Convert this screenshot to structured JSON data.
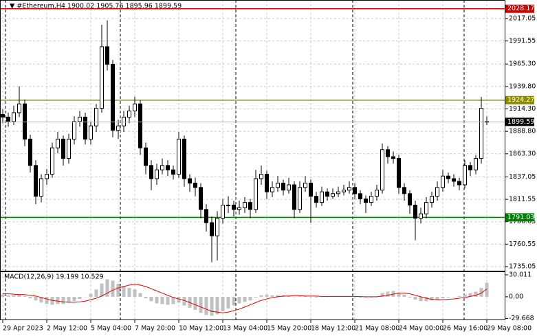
{
  "chart_data": {
    "type": "candlestick",
    "title": "▼ #Ethereum,H4 1900.02 1905.76 1895.96 1899.59",
    "categories": [
      "29 Apr 2023",
      null,
      null,
      null,
      null,
      null,
      null,
      null,
      "2 May 12:00",
      null,
      null,
      null,
      null,
      null,
      null,
      null,
      "5 May 04:00",
      null,
      null,
      null,
      null,
      null,
      null,
      null,
      "7 May 20:00",
      null,
      null,
      null,
      null,
      null,
      null,
      null,
      "10 May 12:00",
      null,
      null,
      null,
      null,
      null,
      null,
      null,
      "13 May 04:00",
      null,
      null,
      null,
      null,
      null,
      null,
      null,
      "15 May 20:00",
      null,
      null,
      null,
      null,
      null,
      null,
      null,
      "18 May 12:00",
      null,
      null,
      null,
      null,
      null,
      null,
      null,
      "21 May 08:00",
      null,
      null,
      null,
      null,
      null,
      null,
      null,
      "24 May 00:00",
      null,
      null,
      null,
      null,
      null,
      null,
      null,
      "26 May 16:00",
      null,
      null,
      null,
      null,
      null,
      null,
      null,
      "29 May 08:00"
    ],
    "ohlc": [
      [
        1908,
        1914,
        1898,
        1905
      ],
      [
        1905,
        1910,
        1894,
        1900
      ],
      [
        1900,
        1918,
        1896,
        1910
      ],
      [
        1910,
        1940,
        1905,
        1920
      ],
      [
        1920,
        1925,
        1872,
        1880
      ],
      [
        1880,
        1885,
        1842,
        1850
      ],
      [
        1850,
        1856,
        1806,
        1815
      ],
      [
        1815,
        1840,
        1808,
        1835
      ],
      [
        1835,
        1846,
        1828,
        1840
      ],
      [
        1840,
        1876,
        1836,
        1870
      ],
      [
        1870,
        1888,
        1864,
        1880
      ],
      [
        1880,
        1884,
        1850,
        1858
      ],
      [
        1858,
        1886,
        1852,
        1880
      ],
      [
        1880,
        1906,
        1874,
        1900
      ],
      [
        1900,
        1912,
        1894,
        1905
      ],
      [
        1905,
        1910,
        1874,
        1880
      ],
      [
        1880,
        1900,
        1874,
        1895
      ],
      [
        1895,
        1920,
        1888,
        1915
      ],
      [
        1915,
        2010,
        1910,
        1985
      ],
      [
        1985,
        2015,
        1958,
        1965
      ],
      [
        1965,
        1970,
        1882,
        1890
      ],
      [
        1890,
        1902,
        1880,
        1895
      ],
      [
        1895,
        1912,
        1888,
        1905
      ],
      [
        1905,
        1918,
        1898,
        1912
      ],
      [
        1912,
        1928,
        1905,
        1920
      ],
      [
        1920,
        1924,
        1862,
        1870
      ],
      [
        1870,
        1876,
        1840,
        1850
      ],
      [
        1850,
        1856,
        1822,
        1835
      ],
      [
        1835,
        1852,
        1828,
        1845
      ],
      [
        1845,
        1858,
        1840,
        1850
      ],
      [
        1850,
        1856,
        1838,
        1845
      ],
      [
        1845,
        1850,
        1834,
        1840
      ],
      [
        1840,
        1888,
        1836,
        1880
      ],
      [
        1880,
        1884,
        1826,
        1835
      ],
      [
        1835,
        1840,
        1820,
        1830
      ],
      [
        1830,
        1836,
        1815,
        1825
      ],
      [
        1825,
        1830,
        1790,
        1800
      ],
      [
        1800,
        1806,
        1775,
        1785
      ],
      [
        1785,
        1792,
        1740,
        1770
      ],
      [
        1770,
        1798,
        1742,
        1790
      ],
      [
        1790,
        1812,
        1784,
        1805
      ],
      [
        1805,
        1815,
        1796,
        1805
      ],
      [
        1805,
        1810,
        1792,
        1800
      ],
      [
        1800,
        1810,
        1794,
        1802
      ],
      [
        1802,
        1814,
        1796,
        1808
      ],
      [
        1808,
        1812,
        1790,
        1800
      ],
      [
        1800,
        1845,
        1796,
        1835
      ],
      [
        1835,
        1850,
        1828,
        1840
      ],
      [
        1840,
        1844,
        1812,
        1820
      ],
      [
        1820,
        1832,
        1814,
        1825
      ],
      [
        1825,
        1838,
        1820,
        1830
      ],
      [
        1830,
        1834,
        1816,
        1822
      ],
      [
        1822,
        1836,
        1818,
        1828
      ],
      [
        1828,
        1832,
        1790,
        1800
      ],
      [
        1800,
        1832,
        1796,
        1825
      ],
      [
        1825,
        1838,
        1820,
        1830
      ],
      [
        1830,
        1834,
        1785,
        1815
      ],
      [
        1815,
        1820,
        1802,
        1808
      ],
      [
        1808,
        1826,
        1804,
        1820
      ],
      [
        1820,
        1824,
        1810,
        1815
      ],
      [
        1815,
        1824,
        1812,
        1818
      ],
      [
        1818,
        1826,
        1814,
        1820
      ],
      [
        1820,
        1828,
        1816,
        1822
      ],
      [
        1822,
        1832,
        1818,
        1825
      ],
      [
        1825,
        1830,
        1812,
        1818
      ],
      [
        1818,
        1822,
        1806,
        1812
      ],
      [
        1812,
        1816,
        1796,
        1808
      ],
      [
        1808,
        1820,
        1804,
        1815
      ],
      [
        1815,
        1828,
        1810,
        1822
      ],
      [
        1822,
        1875,
        1818,
        1868
      ],
      [
        1868,
        1872,
        1852,
        1860
      ],
      [
        1860,
        1866,
        1852,
        1858
      ],
      [
        1858,
        1862,
        1818,
        1825
      ],
      [
        1825,
        1830,
        1810,
        1818
      ],
      [
        1818,
        1822,
        1795,
        1805
      ],
      [
        1805,
        1810,
        1765,
        1790
      ],
      [
        1790,
        1802,
        1784,
        1795
      ],
      [
        1795,
        1814,
        1790,
        1808
      ],
      [
        1808,
        1820,
        1802,
        1815
      ],
      [
        1815,
        1832,
        1810,
        1825
      ],
      [
        1825,
        1845,
        1820,
        1838
      ],
      [
        1838,
        1842,
        1830,
        1835
      ],
      [
        1835,
        1840,
        1826,
        1832
      ],
      [
        1832,
        1836,
        1822,
        1828
      ],
      [
        1828,
        1856,
        1824,
        1850
      ],
      [
        1850,
        1854,
        1838,
        1845
      ],
      [
        1845,
        1862,
        1840,
        1858
      ],
      [
        1858,
        1928,
        1852,
        1915
      ],
      [
        1900.02,
        1905.76,
        1895.96,
        1899.59
      ]
    ],
    "ylim": [
      1729.6,
      2038.1
    ],
    "yticks": [
      2017.05,
      1991.55,
      {
        "value": 1965.3,
        "label": "1965.30"
      },
      {
        "value": 1939.8,
        "label": "1939.80"
      },
      {
        "value": 1914.3,
        "label": "1914.30"
      },
      {
        "value": 1888.8,
        "label": "1888.80"
      },
      {
        "value": 1863.3,
        "label": "1863.30"
      },
      1837.05,
      1811.55,
      1786.05,
      1760.55,
      1735.05
    ],
    "levels": [
      {
        "value": 2028.17,
        "color": "#d40000"
      },
      {
        "value": 1924.27,
        "color": "#8b8b00"
      },
      {
        "value": 1791.03,
        "color": "#008000"
      }
    ],
    "grid": true,
    "macd": {
      "title": "MACD(12,26,9) 19.199 10.529",
      "histogram": [
        3,
        2,
        2,
        3,
        1,
        -2,
        -5,
        -8,
        -10,
        -11,
        -10,
        -10,
        -8,
        -6,
        -3,
        0,
        4,
        10,
        18,
        24,
        22,
        18,
        15,
        12,
        10,
        5,
        -2,
        -6,
        -9,
        -10,
        -11,
        -10,
        -8,
        -12,
        -15,
        -18,
        -22,
        -25,
        -26,
        -24,
        -20,
        -16,
        -12,
        -9,
        -7,
        -5,
        -1,
        2,
        3,
        2,
        2,
        2,
        1,
        0,
        1,
        1,
        0,
        -1,
        0,
        0,
        1,
        1,
        1,
        1,
        0,
        -1,
        -1,
        -1,
        0,
        5,
        7,
        8,
        6,
        3,
        -1,
        -4,
        -6,
        -6,
        -5,
        -4,
        -2,
        -1,
        0,
        1,
        3,
        5,
        7,
        12,
        19.199
      ],
      "signal": [
        4,
        4,
        3.5,
        3,
        3,
        2,
        1,
        -1,
        -3,
        -5,
        -6,
        -7,
        -7.5,
        -7.5,
        -7,
        -6,
        -4,
        -2,
        1,
        5,
        9,
        12,
        14,
        16,
        17,
        16,
        14,
        11,
        8,
        5,
        2,
        -1,
        -3,
        -5,
        -8,
        -11,
        -14,
        -17,
        -20,
        -21,
        -22,
        -21,
        -19,
        -17,
        -14,
        -11,
        -8,
        -5,
        -3,
        -1,
        0,
        1,
        1,
        1.5,
        1.5,
        1,
        1,
        1,
        0.5,
        0.5,
        0.5,
        0.5,
        0.5,
        0.5,
        0.5,
        0.3,
        0,
        0,
        0,
        1,
        2,
        3.5,
        5,
        5,
        4,
        2,
        0,
        -2,
        -3.5,
        -4,
        -4,
        -3.5,
        -3,
        -2,
        -1,
        0.5,
        2,
        5,
        10.529
      ],
      "histogram_color": "#c0c0c0",
      "signal_color": "#e00000",
      "ylim": [
        -32.1,
        34.7
      ],
      "yticks": [
        30.011,
        {
          "value": 0,
          "label": "0.00"
        },
        -29.668
      ]
    }
  }
}
